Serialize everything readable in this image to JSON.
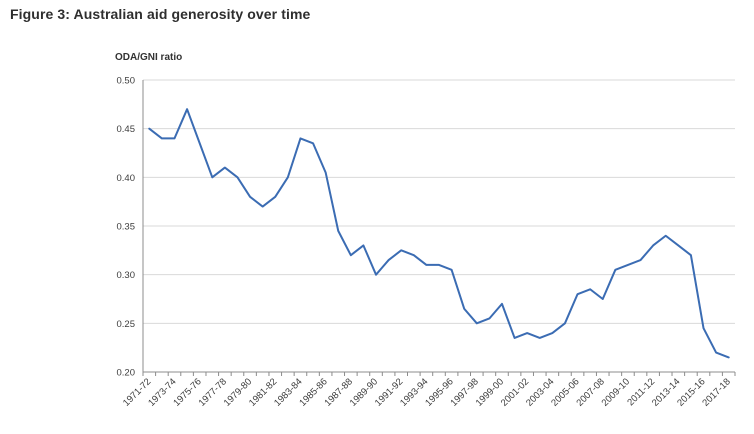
{
  "figure_title": "Figure 3: Australian aid generosity over time",
  "y_axis_title": "ODA/GNI ratio",
  "colors": {
    "line": "#3b6cb3",
    "gridline": "#d9d9d9",
    "axis": "#8c8c8c",
    "title_text": "#2e2e2e",
    "tick_text": "#3d3d3d"
  },
  "chart_data": {
    "type": "line",
    "title": "Figure 3: Australian aid generosity over time",
    "ylabel": "ODA/GNI ratio",
    "xlabel": "",
    "ylim": [
      0.2,
      0.5
    ],
    "ytick_step": 0.05,
    "ytick_labels": [
      "0.20",
      "0.25",
      "0.30",
      "0.35",
      "0.40",
      "0.45",
      "0.50"
    ],
    "grid": true,
    "legend": false,
    "x_label_every": 2,
    "x": [
      "1971-72",
      "1972-73",
      "1973-74",
      "1974-75",
      "1975-76",
      "1976-77",
      "1977-78",
      "1978-79",
      "1979-80",
      "1980-81",
      "1981-82",
      "1982-83",
      "1983-84",
      "1984-85",
      "1985-86",
      "1986-87",
      "1987-88",
      "1988-89",
      "1989-90",
      "1990-91",
      "1991-92",
      "1992-93",
      "1993-94",
      "1994-95",
      "1995-96",
      "1996-97",
      "1997-98",
      "1998-99",
      "1999-00",
      "2000-01",
      "2001-02",
      "2002-03",
      "2003-04",
      "2004-05",
      "2005-06",
      "2006-07",
      "2007-08",
      "2008-09",
      "2009-10",
      "2010-11",
      "2011-12",
      "2012-13",
      "2013-14",
      "2014-15",
      "2015-16",
      "2016-17",
      "2017-18"
    ],
    "series": [
      {
        "name": "ODA/GNI ratio",
        "values": [
          0.45,
          0.44,
          0.44,
          0.47,
          0.435,
          0.4,
          0.41,
          0.4,
          0.38,
          0.37,
          0.38,
          0.4,
          0.44,
          0.435,
          0.405,
          0.345,
          0.32,
          0.33,
          0.3,
          0.315,
          0.325,
          0.32,
          0.31,
          0.31,
          0.305,
          0.265,
          0.25,
          0.255,
          0.27,
          0.235,
          0.24,
          0.235,
          0.24,
          0.25,
          0.28,
          0.285,
          0.275,
          0.305,
          0.31,
          0.315,
          0.33,
          0.34,
          0.33,
          0.32,
          0.245,
          0.22,
          0.215
        ]
      }
    ]
  }
}
